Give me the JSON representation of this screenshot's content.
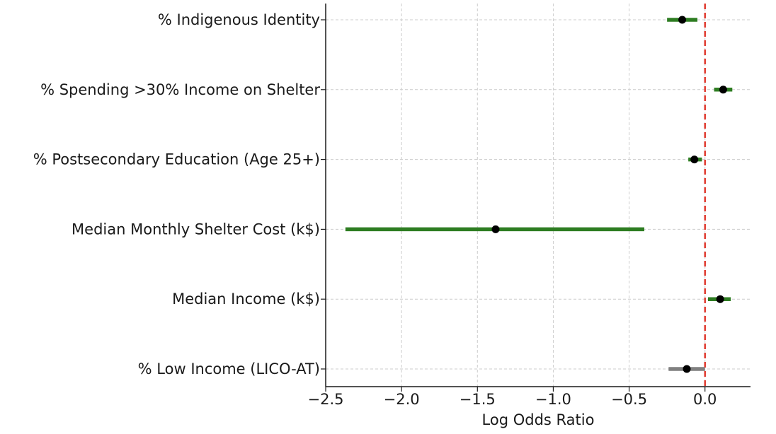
{
  "chart_data": {
    "type": "forest",
    "xlabel": "Log Odds Ratio",
    "ylabel": "",
    "title": "",
    "xlim": [
      -2.5,
      0.3
    ],
    "xticks": [
      -2.5,
      -2.0,
      -1.5,
      -1.0,
      -0.5,
      0.0
    ],
    "xtick_labels": [
      "−2.5",
      "−2.0",
      "−1.5",
      "−1.0",
      "−0.5",
      "0.0"
    ],
    "grid": true,
    "reference_line": {
      "x": 0.0,
      "color": "#e03c31",
      "style": "dashed"
    },
    "colors": {
      "significant": "#2e7d22",
      "not_significant": "#808080",
      "point": "#000000",
      "grid": "#cccccc",
      "axis": "#1a1a1a"
    },
    "variables": [
      {
        "label": "% Indigenous Identity",
        "estimate": -0.15,
        "ci_low": -0.25,
        "ci_high": -0.05,
        "significant": true
      },
      {
        "label": "% Spending >30% Income on Shelter",
        "estimate": 0.12,
        "ci_low": 0.06,
        "ci_high": 0.18,
        "significant": true
      },
      {
        "label": "% Postsecondary Education (Age 25+)",
        "estimate": -0.07,
        "ci_low": -0.11,
        "ci_high": -0.02,
        "significant": true
      },
      {
        "label": "Median Monthly Shelter Cost (k$)",
        "estimate": -1.38,
        "ci_low": -2.37,
        "ci_high": -0.4,
        "significant": true
      },
      {
        "label": "Median Income (k$)",
        "estimate": 0.1,
        "ci_low": 0.02,
        "ci_high": 0.17,
        "significant": true
      },
      {
        "label": "% Low Income (LICO-AT)",
        "estimate": -0.12,
        "ci_low": -0.24,
        "ci_high": 0.0,
        "significant": false
      }
    ]
  }
}
